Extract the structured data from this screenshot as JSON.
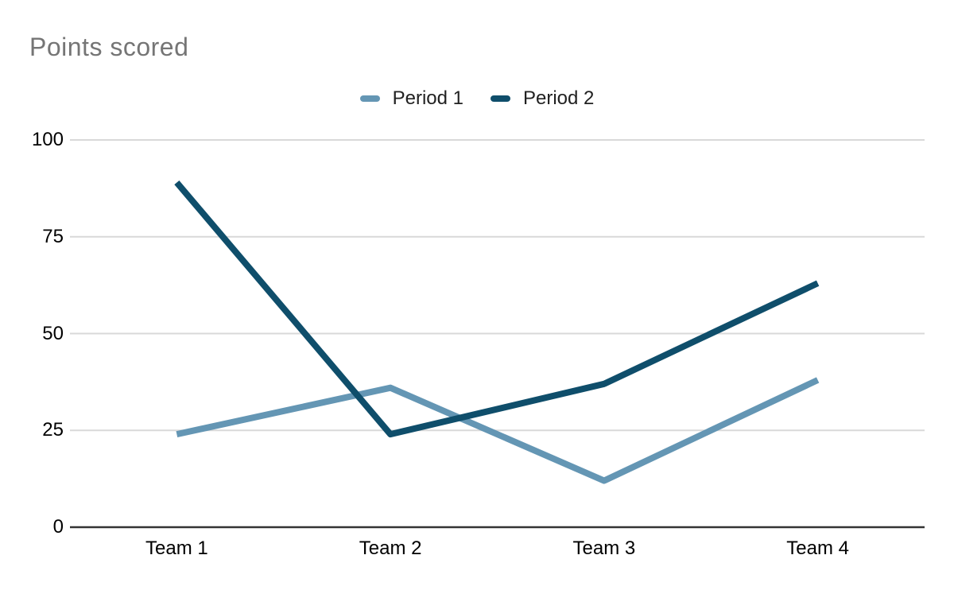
{
  "chart_data": {
    "type": "line",
    "title": "Points scored",
    "categories": [
      "Team 1",
      "Team 2",
      "Team 3",
      "Team 4"
    ],
    "series": [
      {
        "name": "Period 1",
        "color": "#6496b4",
        "values": [
          24,
          36,
          12,
          38
        ]
      },
      {
        "name": "Period 2",
        "color": "#0f4e6b",
        "values": [
          89,
          24,
          37,
          63
        ]
      }
    ],
    "xlabel": "",
    "ylabel": "",
    "ylim": [
      0,
      100
    ],
    "yticks": [
      0,
      25,
      50,
      75,
      100
    ],
    "grid": true,
    "legend_position": "top-center",
    "colors": {
      "title_text": "#757575",
      "axis_label_text": "#000000",
      "legend_text": "#212121",
      "gridline": "#d9d9d9",
      "baseline": "#333333",
      "background": "#ffffff"
    }
  }
}
